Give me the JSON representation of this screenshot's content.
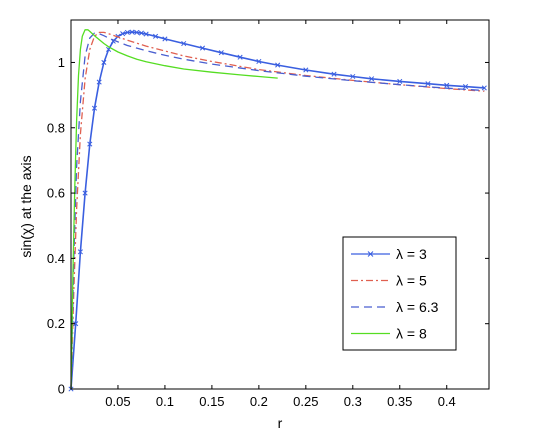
{
  "chart_data": {
    "type": "line",
    "title": "",
    "xlabel": "r",
    "ylabel": "sin(χ) at the axis",
    "xlim": [
      0,
      0.445
    ],
    "ylim": [
      0,
      1.13
    ],
    "xticks": [
      0.05,
      0.1,
      0.15,
      0.2,
      0.25,
      0.3,
      0.35,
      0.4
    ],
    "xtick_labels": [
      "0.05",
      "0.1",
      "0.15",
      "0.2",
      "0.25",
      "0.3",
      "0.35",
      "0.4"
    ],
    "yticks": [
      0,
      0.2,
      0.4,
      0.6,
      0.8,
      1
    ],
    "ytick_labels": [
      "0",
      "0.2",
      "0.4",
      "0.6",
      "0.8",
      "1"
    ],
    "grid": false,
    "legend_position": "lower-right",
    "series": [
      {
        "name": "λ = 3",
        "color": "#3a5fe0",
        "style": "solid-x-markers",
        "x": [
          0,
          0.005,
          0.01,
          0.015,
          0.02,
          0.025,
          0.03,
          0.035,
          0.04,
          0.045,
          0.05,
          0.055,
          0.06,
          0.065,
          0.07,
          0.075,
          0.08,
          0.09,
          0.1,
          0.12,
          0.14,
          0.16,
          0.18,
          0.2,
          0.22,
          0.25,
          0.28,
          0.3,
          0.32,
          0.35,
          0.38,
          0.4,
          0.42,
          0.44
        ],
        "y": [
          0,
          0.2,
          0.42,
          0.6,
          0.75,
          0.86,
          0.94,
          1.0,
          1.04,
          1.065,
          1.08,
          1.088,
          1.092,
          1.093,
          1.092,
          1.09,
          1.087,
          1.08,
          1.072,
          1.058,
          1.044,
          1.03,
          1.016,
          1.003,
          0.992,
          0.977,
          0.964,
          0.957,
          0.95,
          0.942,
          0.935,
          0.93,
          0.926,
          0.922
        ]
      },
      {
        "name": "λ = 5",
        "color": "#e06050",
        "style": "dash-dot",
        "x": [
          0,
          0.003,
          0.006,
          0.01,
          0.015,
          0.02,
          0.025,
          0.03,
          0.035,
          0.04,
          0.05,
          0.06,
          0.08,
          0.1,
          0.12,
          0.15,
          0.2,
          0.25,
          0.3,
          0.35,
          0.4,
          0.44
        ],
        "y": [
          0,
          0.3,
          0.55,
          0.78,
          0.95,
          1.04,
          1.08,
          1.092,
          1.092,
          1.088,
          1.078,
          1.068,
          1.05,
          1.035,
          1.02,
          1.003,
          0.978,
          0.96,
          0.945,
          0.932,
          0.92,
          0.912
        ]
      },
      {
        "name": "λ = 6.3",
        "color": "#4a5fd0",
        "style": "dashed",
        "x": [
          0,
          0.003,
          0.006,
          0.01,
          0.015,
          0.02,
          0.025,
          0.03,
          0.035,
          0.04,
          0.05,
          0.06,
          0.08,
          0.1,
          0.12,
          0.15,
          0.2,
          0.25,
          0.3,
          0.35,
          0.4,
          0.44
        ],
        "y": [
          0,
          0.4,
          0.68,
          0.88,
          1.02,
          1.075,
          1.09,
          1.088,
          1.082,
          1.075,
          1.063,
          1.052,
          1.036,
          1.022,
          1.01,
          0.995,
          0.975,
          0.958,
          0.944,
          0.932,
          0.921,
          0.914
        ]
      },
      {
        "name": "λ = 8",
        "color": "#55dd22",
        "style": "solid",
        "x": [
          0,
          0.002,
          0.004,
          0.006,
          0.008,
          0.01,
          0.012,
          0.015,
          0.018,
          0.02,
          0.025,
          0.03,
          0.035,
          0.04,
          0.05,
          0.06,
          0.07,
          0.08,
          0.1,
          0.12,
          0.15,
          0.18,
          0.2,
          0.22
        ],
        "y": [
          0,
          0.35,
          0.62,
          0.82,
          0.96,
          1.04,
          1.08,
          1.1,
          1.1,
          1.095,
          1.082,
          1.07,
          1.058,
          1.048,
          1.032,
          1.02,
          1.01,
          1.002,
          0.99,
          0.98,
          0.97,
          0.962,
          0.957,
          0.952
        ]
      }
    ]
  }
}
